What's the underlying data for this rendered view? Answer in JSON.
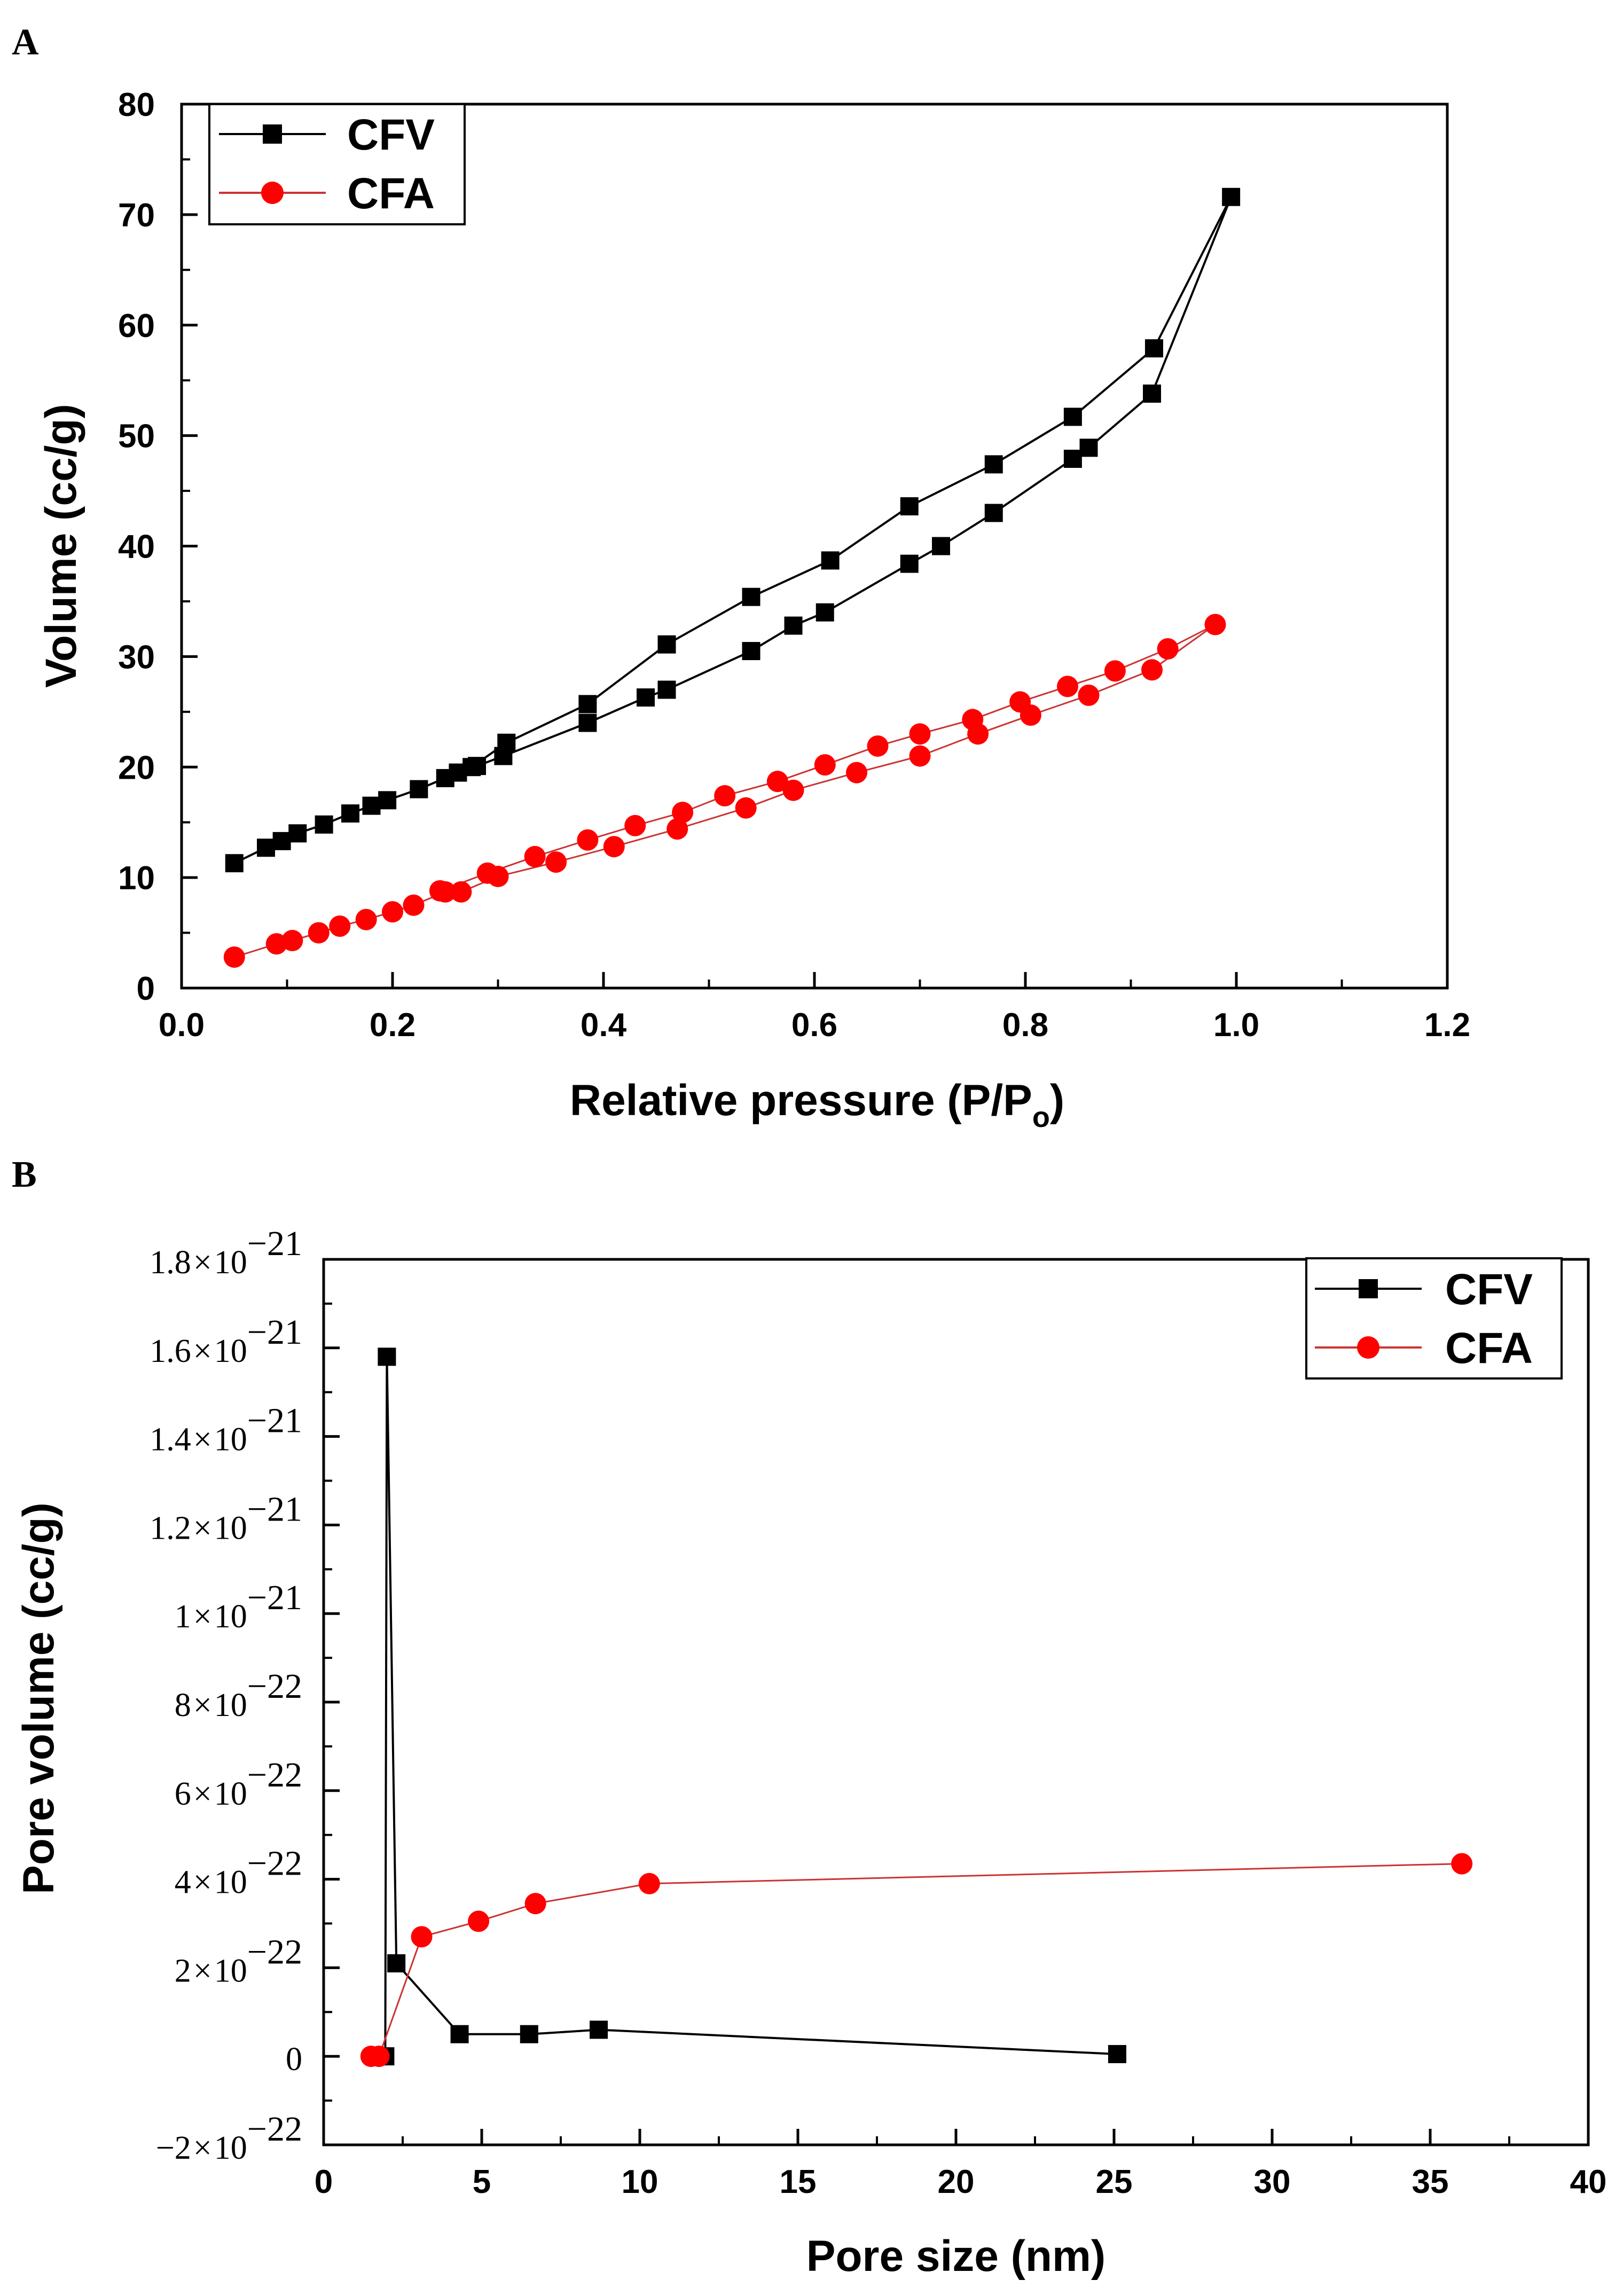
{
  "colors": {
    "cfv": "#000000",
    "cfa": "#ff0000",
    "axis": "#000000",
    "cfa_line": "#cc3333"
  },
  "chart_data": [
    {
      "panel_label": "A",
      "type": "line",
      "xlabel": "Relative pressure (P/P",
      "xlabel_sub": "o",
      "xlabel_end": ")",
      "ylabel": "Volume (cc/g)",
      "xlim": [
        0,
        1.2
      ],
      "ylim": [
        0,
        80
      ],
      "xticks": [
        0.0,
        0.2,
        0.4,
        0.6,
        0.8,
        1.0,
        1.2
      ],
      "xtick_labels": [
        "0.0",
        "0.2",
        "0.4",
        "0.6",
        "0.8",
        "1.0",
        "1.2"
      ],
      "yticks": [
        0,
        10,
        20,
        30,
        40,
        50,
        60,
        70,
        80
      ],
      "ytick_labels": [
        "0",
        "10",
        "20",
        "30",
        "40",
        "50",
        "60",
        "70",
        "80"
      ],
      "legend_position": "top-left",
      "series": [
        {
          "name": "CFV",
          "marker": "square",
          "color": "#000000",
          "points": [
            [
              0.05,
              11.3
            ],
            [
              0.08,
              12.7
            ],
            [
              0.095,
              13.3
            ],
            [
              0.11,
              14.0
            ],
            [
              0.135,
              14.8
            ],
            [
              0.16,
              15.8
            ],
            [
              0.18,
              16.5
            ],
            [
              0.195,
              17.0
            ],
            [
              0.225,
              18.0
            ],
            [
              0.25,
              19.0
            ],
            [
              0.262,
              19.5
            ],
            [
              0.28,
              20.1
            ],
            [
              0.305,
              21.0
            ],
            [
              0.385,
              24.0
            ],
            [
              0.44,
              26.3
            ],
            [
              0.46,
              27.0
            ],
            [
              0.54,
              30.5
            ],
            [
              0.58,
              32.8
            ],
            [
              0.61,
              34.0
            ],
            [
              0.69,
              38.4
            ],
            [
              0.72,
              40.0
            ],
            [
              0.77,
              43.0
            ],
            [
              0.845,
              47.9
            ],
            [
              0.86,
              48.9
            ],
            [
              0.92,
              53.8
            ],
            [
              0.995,
              71.6
            ],
            [
              0.922,
              57.9
            ],
            [
              0.845,
              51.7
            ],
            [
              0.77,
              47.4
            ],
            [
              0.69,
              43.6
            ],
            [
              0.615,
              38.7
            ],
            [
              0.54,
              35.4
            ],
            [
              0.46,
              31.1
            ],
            [
              0.385,
              25.7
            ],
            [
              0.308,
              22.2
            ],
            [
              0.275,
              20.0
            ]
          ]
        },
        {
          "name": "CFA",
          "marker": "circle",
          "color": "#ff0000",
          "points": [
            [
              0.05,
              2.8
            ],
            [
              0.09,
              4.0
            ],
            [
              0.105,
              4.3
            ],
            [
              0.13,
              5.0
            ],
            [
              0.15,
              5.6
            ],
            [
              0.175,
              6.2
            ],
            [
              0.2,
              6.9
            ],
            [
              0.22,
              7.5
            ],
            [
              0.25,
              8.7
            ],
            [
              0.265,
              8.7
            ],
            [
              0.3,
              10.1
            ],
            [
              0.355,
              11.4
            ],
            [
              0.41,
              12.8
            ],
            [
              0.47,
              14.4
            ],
            [
              0.535,
              16.3
            ],
            [
              0.58,
              17.9
            ],
            [
              0.64,
              19.5
            ],
            [
              0.7,
              21.0
            ],
            [
              0.755,
              23.0
            ],
            [
              0.805,
              24.7
            ],
            [
              0.86,
              26.5
            ],
            [
              0.92,
              28.8
            ],
            [
              0.98,
              32.9
            ],
            [
              0.935,
              30.7
            ],
            [
              0.885,
              28.7
            ],
            [
              0.84,
              27.3
            ],
            [
              0.795,
              25.9
            ],
            [
              0.75,
              24.3
            ],
            [
              0.7,
              23.0
            ],
            [
              0.66,
              21.9
            ],
            [
              0.61,
              20.2
            ],
            [
              0.565,
              18.7
            ],
            [
              0.515,
              17.4
            ],
            [
              0.475,
              15.9
            ],
            [
              0.43,
              14.7
            ],
            [
              0.385,
              13.4
            ],
            [
              0.335,
              11.9
            ],
            [
              0.29,
              10.4
            ],
            [
              0.245,
              8.8
            ]
          ]
        }
      ]
    },
    {
      "panel_label": "B",
      "type": "line",
      "xlabel": "Pore size (nm)",
      "ylabel": "Pore volume (cc/g)",
      "xlim": [
        0,
        40
      ],
      "ylim": [
        -2e-22,
        1.8e-21
      ],
      "xticks": [
        0,
        5,
        10,
        15,
        20,
        25,
        30,
        35,
        40
      ],
      "xtick_labels": [
        "0",
        "5",
        "10",
        "15",
        "20",
        "25",
        "30",
        "35",
        "40"
      ],
      "ytick_values": [
        -2e-22,
        0,
        2e-22,
        4e-22,
        6e-22,
        8e-22,
        1e-21,
        1.2e-21,
        1.4e-21,
        1.6e-21,
        1.8e-21
      ],
      "ytick_labels": [
        {
          "mant": "−2",
          "times": "×",
          "base": "10",
          "exp": "−22"
        },
        {
          "mant": "0",
          "times": "",
          "base": "",
          "exp": ""
        },
        {
          "mant": "2",
          "times": "×",
          "base": "10",
          "exp": "−22"
        },
        {
          "mant": "4",
          "times": "×",
          "base": "10",
          "exp": "−22"
        },
        {
          "mant": "6",
          "times": "×",
          "base": "10",
          "exp": "−22"
        },
        {
          "mant": "8",
          "times": "×",
          "base": "10",
          "exp": "−22"
        },
        {
          "mant": "1",
          "times": "×",
          "base": "10",
          "exp": "−21"
        },
        {
          "mant": "1.2",
          "times": "×",
          "base": "10",
          "exp": "−21"
        },
        {
          "mant": "1.4",
          "times": "×",
          "base": "10",
          "exp": "−21"
        },
        {
          "mant": "1.6",
          "times": "×",
          "base": "10",
          "exp": "−21"
        },
        {
          "mant": "1.8",
          "times": "×",
          "base": "10",
          "exp": "−21"
        }
      ],
      "legend_position": "top-right",
      "series": [
        {
          "name": "CFV",
          "marker": "square",
          "color": "#000000",
          "points": [
            [
              1.7,
              0
            ],
            [
              1.95,
              0
            ],
            [
              2.0,
              1.58e-21
            ],
            [
              2.3,
              2.1e-22
            ],
            [
              4.3,
              5e-23
            ],
            [
              6.5,
              5e-23
            ],
            [
              8.7,
              6e-23
            ],
            [
              25.1,
              5e-24
            ]
          ]
        },
        {
          "name": "CFA",
          "marker": "circle",
          "color": "#ff0000",
          "points": [
            [
              1.5,
              0
            ],
            [
              1.75,
              0
            ],
            [
              3.1,
              2.7e-22
            ],
            [
              4.9,
              3.05e-22
            ],
            [
              6.7,
              3.45e-22
            ],
            [
              10.3,
              3.9e-22
            ],
            [
              36.0,
              4.35e-22
            ]
          ]
        }
      ]
    }
  ]
}
